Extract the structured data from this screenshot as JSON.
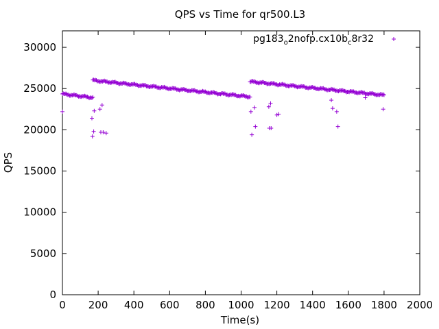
{
  "chart_data": {
    "type": "scatter",
    "title": "QPS vs Time for qr500.L3",
    "xlabel": "Time(s)",
    "ylabel": "QPS",
    "xlim": [
      0,
      2000
    ],
    "ylim": [
      0,
      32000
    ],
    "x_ticks": [
      0,
      200,
      400,
      600,
      800,
      1000,
      1200,
      1400,
      1600,
      1800,
      2000
    ],
    "y_ticks": [
      0,
      5000,
      10000,
      15000,
      20000,
      25000,
      30000
    ],
    "x_tick_labels": [
      "0",
      "200",
      "400",
      "600",
      "800",
      "1000",
      "1200",
      "1400",
      "1600",
      "1800",
      "2000"
    ],
    "y_tick_labels": [
      "0",
      "5000",
      "10000",
      "15000",
      "20000",
      "25000",
      "30000"
    ],
    "grid": false,
    "legend_position": "top-right",
    "marker": "plus",
    "colors": {
      "series": "#9400d3",
      "axis": "#000000"
    },
    "series": [
      {
        "name": "pg183o2nofp.cx10bc8r32",
        "name_parts": {
          "a": "pg183",
          "b": "o",
          "c": "2nofp.cx10b",
          "d": "c",
          "e": "8r32"
        },
        "segments": [
          {
            "x_range": [
              0,
              170
            ],
            "y_range": [
              24350,
              23900
            ],
            "step": 5
          },
          {
            "x_range": [
              170,
              1050
            ],
            "y_range": [
              26000,
              24000
            ],
            "step": 5
          },
          {
            "x_range": [
              1050,
              1800
            ],
            "y_range": [
              25850,
              24200
            ],
            "step": 5
          }
        ],
        "points": [
          {
            "x": 0,
            "y": 22200
          },
          {
            "x": 165,
            "y": 21400
          },
          {
            "x": 168,
            "y": 19200
          },
          {
            "x": 175,
            "y": 19800
          },
          {
            "x": 178,
            "y": 22300
          },
          {
            "x": 210,
            "y": 22500
          },
          {
            "x": 215,
            "y": 19700
          },
          {
            "x": 222,
            "y": 23000
          },
          {
            "x": 228,
            "y": 19700
          },
          {
            "x": 245,
            "y": 19600
          },
          {
            "x": 1055,
            "y": 22200
          },
          {
            "x": 1060,
            "y": 19400
          },
          {
            "x": 1075,
            "y": 22700
          },
          {
            "x": 1080,
            "y": 20400
          },
          {
            "x": 1155,
            "y": 22800
          },
          {
            "x": 1158,
            "y": 20200
          },
          {
            "x": 1165,
            "y": 23200
          },
          {
            "x": 1168,
            "y": 20200
          },
          {
            "x": 1200,
            "y": 21800
          },
          {
            "x": 1210,
            "y": 21900
          },
          {
            "x": 1505,
            "y": 23600
          },
          {
            "x": 1512,
            "y": 22600
          },
          {
            "x": 1535,
            "y": 22200
          },
          {
            "x": 1542,
            "y": 20400
          },
          {
            "x": 1695,
            "y": 23900
          },
          {
            "x": 1795,
            "y": 22500
          }
        ]
      }
    ]
  }
}
